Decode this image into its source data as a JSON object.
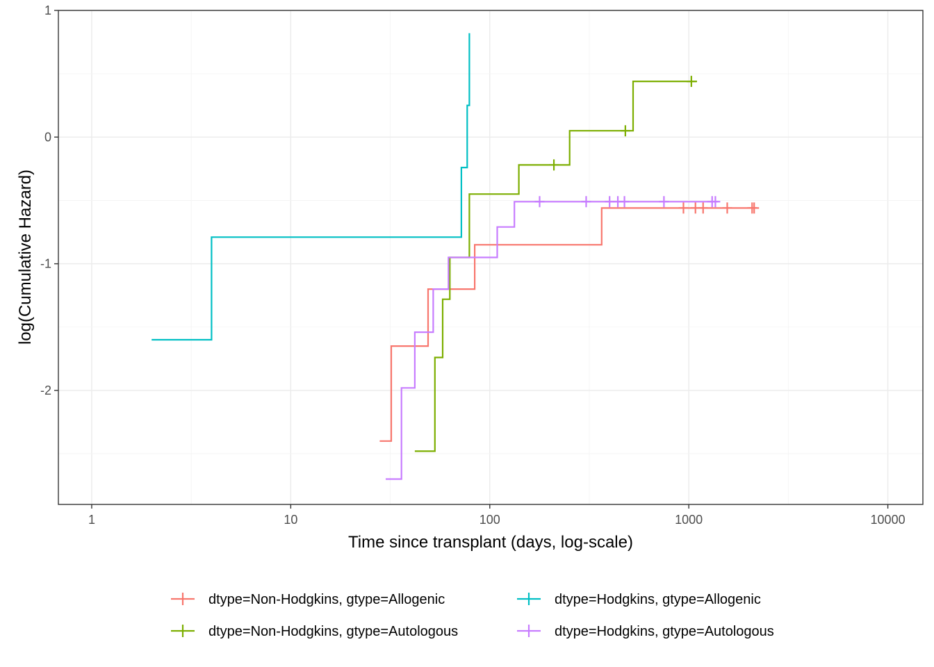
{
  "chart_data": {
    "type": "line",
    "step": true,
    "xlabel": "Time since transplant (days, log-scale)",
    "ylabel": "log(Cumulative Hazard)",
    "x_scale": "log10",
    "xlim": [
      0.68,
      15000
    ],
    "ylim": [
      -2.9,
      1.0
    ],
    "x_ticks": [
      1,
      10,
      100,
      1000,
      10000
    ],
    "x_tick_labels": [
      "1",
      "10",
      "100",
      "1000",
      "10000"
    ],
    "y_ticks": [
      -2,
      -1,
      0,
      1
    ],
    "y_tick_labels": [
      "-2",
      "-1",
      "0",
      "1"
    ],
    "grid": true,
    "legend_position": "bottom",
    "series": [
      {
        "name": "dtype=Non-Hodgkins, gtype=Allogenic",
        "color": "#F8766D",
        "steps": [
          [
            28,
            -2.4
          ],
          [
            32,
            -1.65
          ],
          [
            49,
            -1.2
          ],
          [
            84,
            -0.85
          ],
          [
            365,
            -0.56
          ],
          [
            2200,
            -0.56
          ]
        ],
        "censored": [
          [
            940,
            -0.56
          ],
          [
            1080,
            -0.56
          ],
          [
            1180,
            -0.56
          ],
          [
            1560,
            -0.56
          ],
          [
            2080,
            -0.56
          ],
          [
            2130,
            -0.56
          ]
        ]
      },
      {
        "name": "dtype=Non-Hodgkins, gtype=Autologous",
        "color": "#7CAE00",
        "steps": [
          [
            42,
            -2.48
          ],
          [
            53,
            -1.74
          ],
          [
            58,
            -1.28
          ],
          [
            63,
            -0.95
          ],
          [
            79,
            -0.45
          ],
          [
            140,
            -0.22
          ],
          [
            252,
            0.05
          ],
          [
            525,
            0.44
          ],
          [
            1100,
            0.44
          ]
        ],
        "censored": [
          [
            210,
            -0.22
          ],
          [
            480,
            0.05
          ],
          [
            1030,
            0.44
          ]
        ]
      },
      {
        "name": "dtype=Hodgkins, gtype=Allogenic",
        "color": "#00BFC4",
        "steps": [
          [
            2,
            -1.6
          ],
          [
            4,
            -0.79
          ],
          [
            72,
            -0.24
          ],
          [
            77,
            0.25
          ],
          [
            79,
            0.82
          ]
        ],
        "censored": []
      },
      {
        "name": "dtype=Hodgkins, gtype=Autologous",
        "color": "#C77CFF",
        "steps": [
          [
            30,
            -2.7
          ],
          [
            36,
            -1.98
          ],
          [
            42,
            -1.54
          ],
          [
            52,
            -1.2
          ],
          [
            62,
            -0.95
          ],
          [
            109,
            -0.71
          ],
          [
            133,
            -0.51
          ],
          [
            1400,
            -0.51
          ]
        ],
        "censored": [
          [
            178,
            -0.51
          ],
          [
            305,
            -0.51
          ],
          [
            400,
            -0.51
          ],
          [
            440,
            -0.51
          ],
          [
            475,
            -0.51
          ],
          [
            750,
            -0.51
          ],
          [
            1310,
            -0.51
          ],
          [
            1360,
            -0.51
          ]
        ]
      }
    ]
  }
}
